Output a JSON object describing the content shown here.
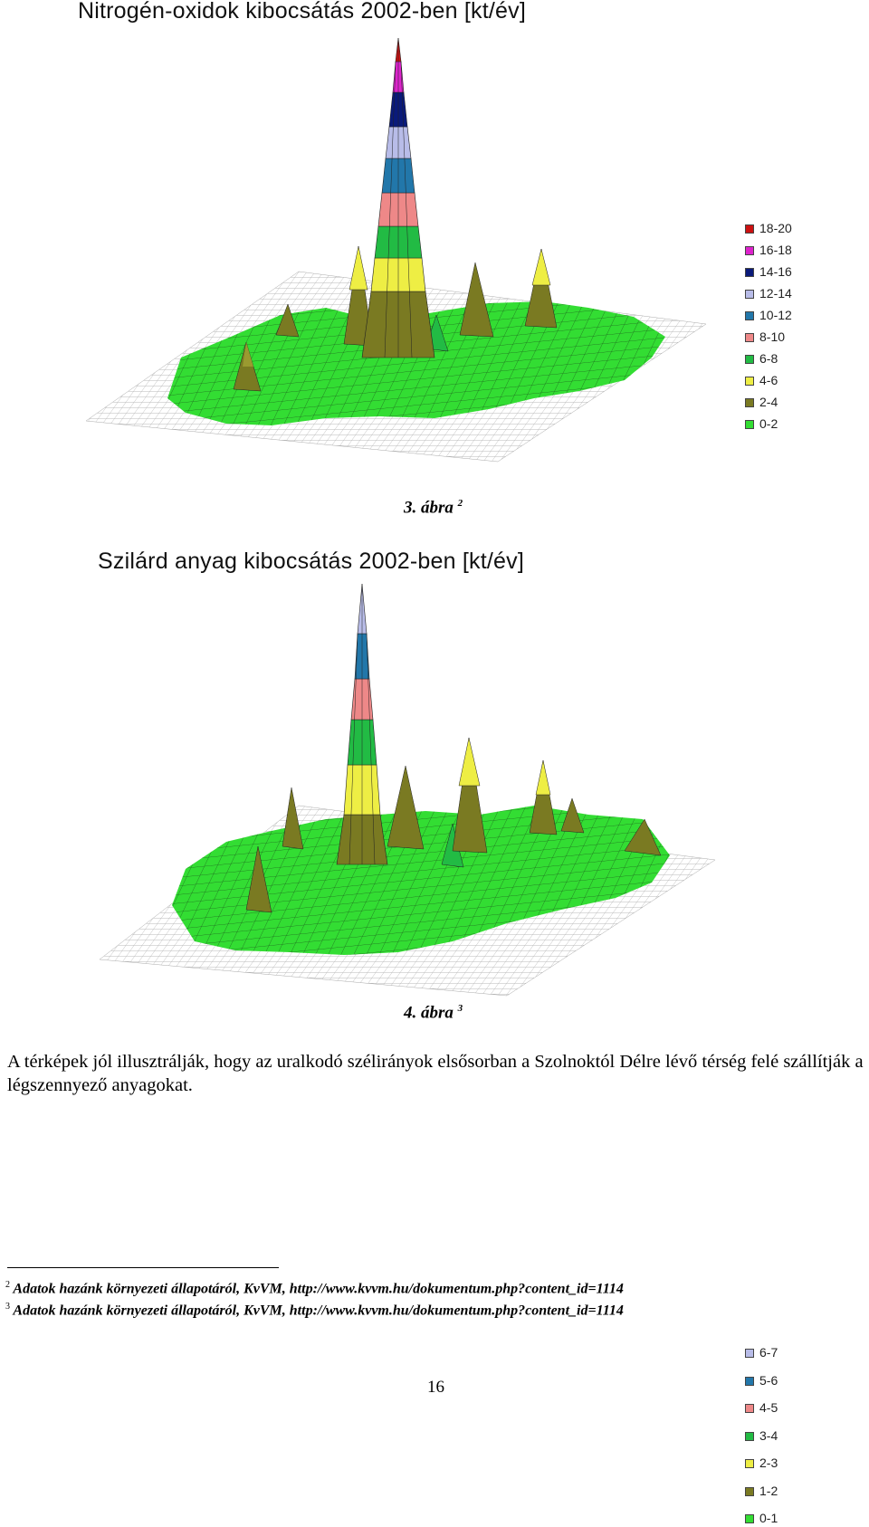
{
  "figure1": {
    "title": "Nitrogén-oxidok kibocsátás 2002-ben [kt/év]",
    "legend": [
      {
        "label": "18-20",
        "color": "#cc1111"
      },
      {
        "label": "16-18",
        "color": "#dd22cc"
      },
      {
        "label": "14-16",
        "color": "#0a1a7a"
      },
      {
        "label": "12-14",
        "color": "#b8bce8"
      },
      {
        "label": "10-12",
        "color": "#2277aa"
      },
      {
        "label": "8-10",
        "color": "#ee8888"
      },
      {
        "label": "6-8",
        "color": "#22bb44"
      },
      {
        "label": "4-6",
        "color": "#eeee44"
      },
      {
        "label": "2-4",
        "color": "#7a7a22"
      },
      {
        "label": "0-2",
        "color": "#33dd33"
      }
    ],
    "caption": "3. ábra",
    "caption_ref": "2"
  },
  "figure2": {
    "title": "Szilárd anyag  kibocsátás 2002-ben [kt/év]",
    "legend": [
      {
        "label": "6-7",
        "color": "#b8bce8"
      },
      {
        "label": "5-6",
        "color": "#2277aa"
      },
      {
        "label": "4-5",
        "color": "#ee8888"
      },
      {
        "label": "3-4",
        "color": "#22bb44"
      },
      {
        "label": "2-3",
        "color": "#eeee44"
      },
      {
        "label": "1-2",
        "color": "#7a7a22"
      },
      {
        "label": "0-1",
        "color": "#33dd33"
      }
    ],
    "caption": "4. ábra",
    "caption_ref": "3"
  },
  "body_text": "A térképek jól illusztrálják, hogy az uralkodó szélirányok elsősorban a Szolnoktól Délre lévő térség felé szállítják a légszennyező anyagokat.",
  "footnotes": [
    {
      "num": "2",
      "text": "Adatok hazánk környezeti állapotáról, KvVM, ",
      "url": "http://www.kvvm.hu/dokumentum.php?content_id=1114"
    },
    {
      "num": "3",
      "text": "Adatok hazánk környezeti állapotáról, KvVM, ",
      "url": "http://www.kvvm.hu/dokumentum.php?content_id=1114"
    }
  ],
  "page_number": "16"
}
